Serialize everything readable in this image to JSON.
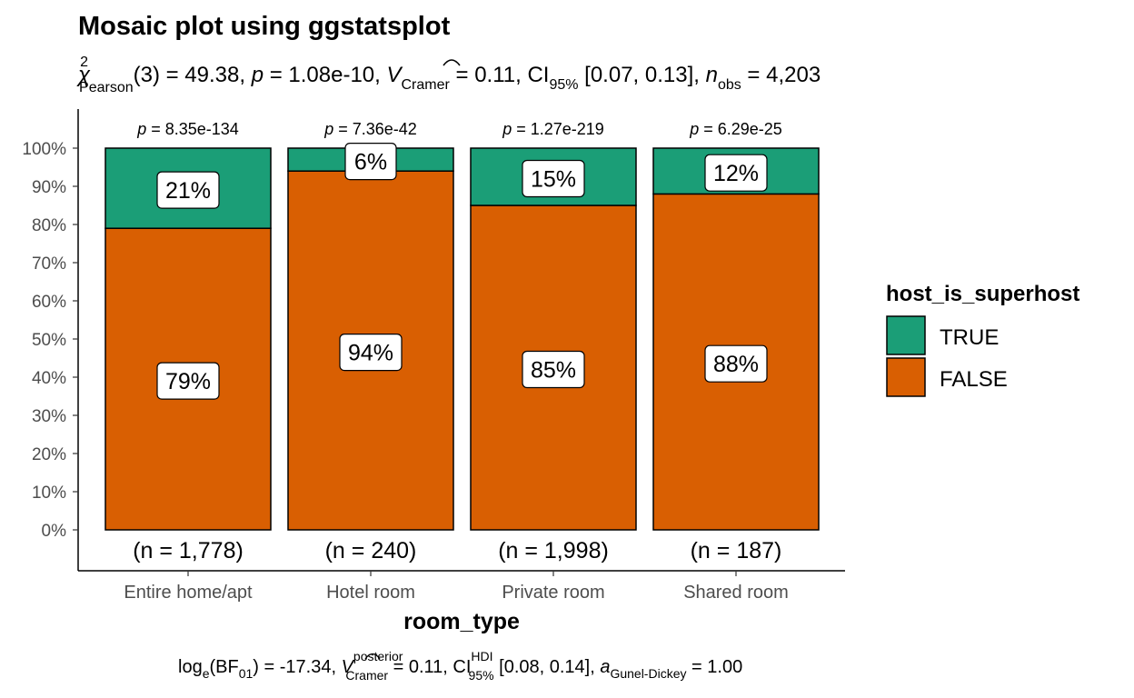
{
  "chart_data": {
    "type": "bar",
    "stacked": true,
    "title": "Mosaic plot using ggstatsplot",
    "subtitle": {
      "chi_sym": "χ",
      "chi_sup": "2",
      "chi_sub": "Pearson",
      "part1": "(3) = 49.38, ",
      "p": "p",
      "part2": " = 1.08e-10, ",
      "v": "V",
      "v_sub": "Cramer",
      "part3": " = 0.11, CI",
      "ci_sub": "95%",
      "part4": " [0.07, 0.13], ",
      "n": "n",
      "n_sub": "obs",
      "part5": " = 4,203"
    },
    "caption": {
      "log": "log",
      "log_sub": "e",
      "bf": "(BF",
      "bf_sub": "01",
      "part1": ") = -17.34, ",
      "v": "V",
      "v_sup": "posterior",
      "v_sub": "Cramer",
      "part2": " = 0.11, CI",
      "ci_sup": "HDI",
      "ci_sub": "95%",
      "part3": " [0.08, 0.14], ",
      "a": "a",
      "a_sub": "Gunel-Dickey",
      "part4": " = 1.00"
    },
    "xlabel": "room_type",
    "ylabel": "",
    "ylim": [
      0,
      100
    ],
    "y_ticks": [
      "0%",
      "10%",
      "20%",
      "30%",
      "40%",
      "50%",
      "60%",
      "70%",
      "80%",
      "90%",
      "100%"
    ],
    "categories": [
      "Entire home/apt",
      "Hotel room",
      "Private room",
      "Shared room"
    ],
    "series": [
      {
        "name": "TRUE",
        "color": "#1B9E77",
        "values": [
          21,
          6,
          15,
          12
        ],
        "labels": [
          "21%",
          "6%",
          "15%",
          "12%"
        ]
      },
      {
        "name": "FALSE",
        "color": "#D95F02",
        "values": [
          79,
          94,
          85,
          88
        ],
        "labels": [
          "79%",
          "94%",
          "85%",
          "88%"
        ]
      }
    ],
    "p_labels": [
      {
        "p": "p",
        "rest": " = 8.35e-134"
      },
      {
        "p": "p",
        "rest": " = 7.36e-42"
      },
      {
        "p": "p",
        "rest": " = 1.27e-219"
      },
      {
        "p": "p",
        "rest": " = 6.29e-25"
      }
    ],
    "n_labels": [
      "(n = 1,778)",
      "(n = 240)",
      "(n = 1,998)",
      "(n = 187)"
    ],
    "legend": {
      "title": "host_is_superhost",
      "position": "right"
    },
    "grid": false
  }
}
